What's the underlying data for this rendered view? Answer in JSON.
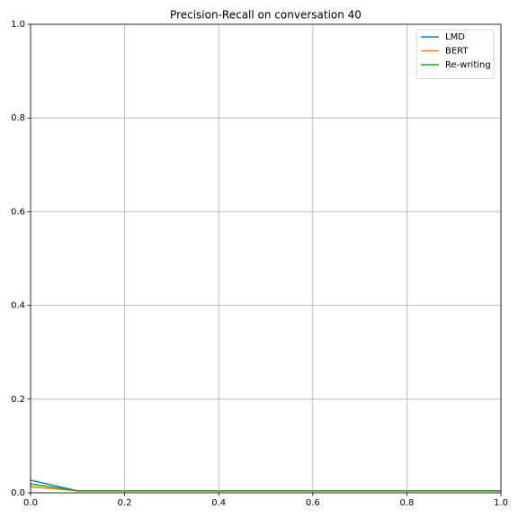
{
  "chart_data": {
    "type": "line",
    "title": "Precision-Recall on conversation 40",
    "x": [
      0,
      0.1,
      0.2,
      0.3,
      0.4,
      0.5,
      0.6,
      0.7,
      0.8,
      0.9,
      1.0
    ],
    "series": [
      {
        "name": "LMD",
        "color": "#1f77b4",
        "values": [
          0.027,
          0.004,
          0.004,
          0.004,
          0.004,
          0.004,
          0.004,
          0.004,
          0.004,
          0.004,
          0.004
        ]
      },
      {
        "name": "BERT",
        "color": "#ff7f0e",
        "values": [
          0.013,
          0.004,
          0.004,
          0.004,
          0.004,
          0.004,
          0.004,
          0.004,
          0.004,
          0.004,
          0.004
        ]
      },
      {
        "name": "Re-writing",
        "color": "#2ca02c",
        "values": [
          0.019,
          0.004,
          0.004,
          0.004,
          0.004,
          0.004,
          0.004,
          0.004,
          0.004,
          0.004,
          0.004
        ]
      }
    ],
    "xlim": [
      0,
      1
    ],
    "ylim": [
      0,
      1
    ],
    "xticks": [
      {
        "value": 0,
        "label": "0.0"
      },
      0.2,
      0.4,
      0.6,
      0.8,
      {
        "value": 1,
        "label": "1.0"
      }
    ],
    "yticks": [
      {
        "value": 0,
        "label": "0.0"
      },
      0.2,
      0.4,
      0.6,
      0.8,
      {
        "value": 1,
        "label": "1.0"
      }
    ],
    "grid": true,
    "legend": "upper right"
  }
}
